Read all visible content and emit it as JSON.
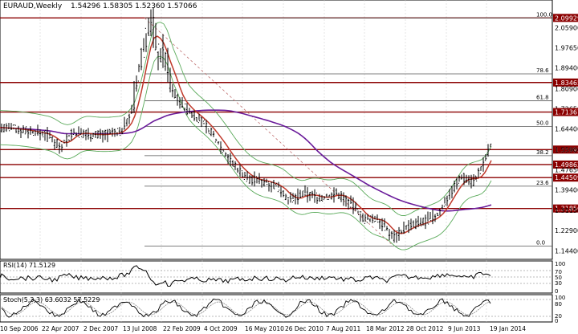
{
  "header": {
    "symbol": "EURAUD,Weekly",
    "ohlc": "1.54296 1.58305 1.52360 1.57066"
  },
  "main_axis": {
    "prices": [
      "2.09929",
      "2.05900",
      "1.97650",
      "1.89400",
      "1.83465",
      "1.80900",
      "1.72650",
      "1.71367",
      "1.64400",
      "1.55993",
      "1.55900",
      "1.49862",
      "1.47650",
      "1.44509",
      "1.39400",
      "1.31856",
      "1.31150",
      "1.22900",
      "1.14400"
    ],
    "highlighted": [
      "2.09929",
      "1.83465",
      "1.71367",
      "1.55993",
      "1.49862",
      "1.44509",
      "1.31856"
    ],
    "fib_levels": [
      "100.0",
      "78.6",
      "61.8",
      "50.0",
      "38.2",
      "23.6",
      "0.0"
    ]
  },
  "rsi": {
    "label": "RSI(14) 71.5129",
    "scale": [
      "100",
      "70",
      "50",
      "30",
      "0"
    ]
  },
  "stoch": {
    "label": "Stoch(5,3,3) 63.6032 57.5229",
    "scale": [
      "100",
      "80",
      "20",
      "0"
    ]
  },
  "x_axis": {
    "dates": [
      "10 Sep 2006",
      "22 Apr 2007",
      "2 Dec 2007",
      "13 Jul 2008",
      "22 Feb 2009",
      "4 Oct 2009",
      "16 May 2010",
      "26 Dec 2010",
      "7 Aug 2011",
      "18 Mar 2012",
      "28 Oct 2012",
      "9 Jun 2013",
      "19 Jan 2014"
    ]
  },
  "colors": {
    "grid_line": "#000000",
    "hline": "#8b0000",
    "ma_red": "#c0392b",
    "ma_blue": "#1a2a9c",
    "ma_purple": "#6a1b9a",
    "ma_gray": "#8c8c8c",
    "ma_navy": "#0b1a6b",
    "bands": "#5aaa5a"
  }
}
